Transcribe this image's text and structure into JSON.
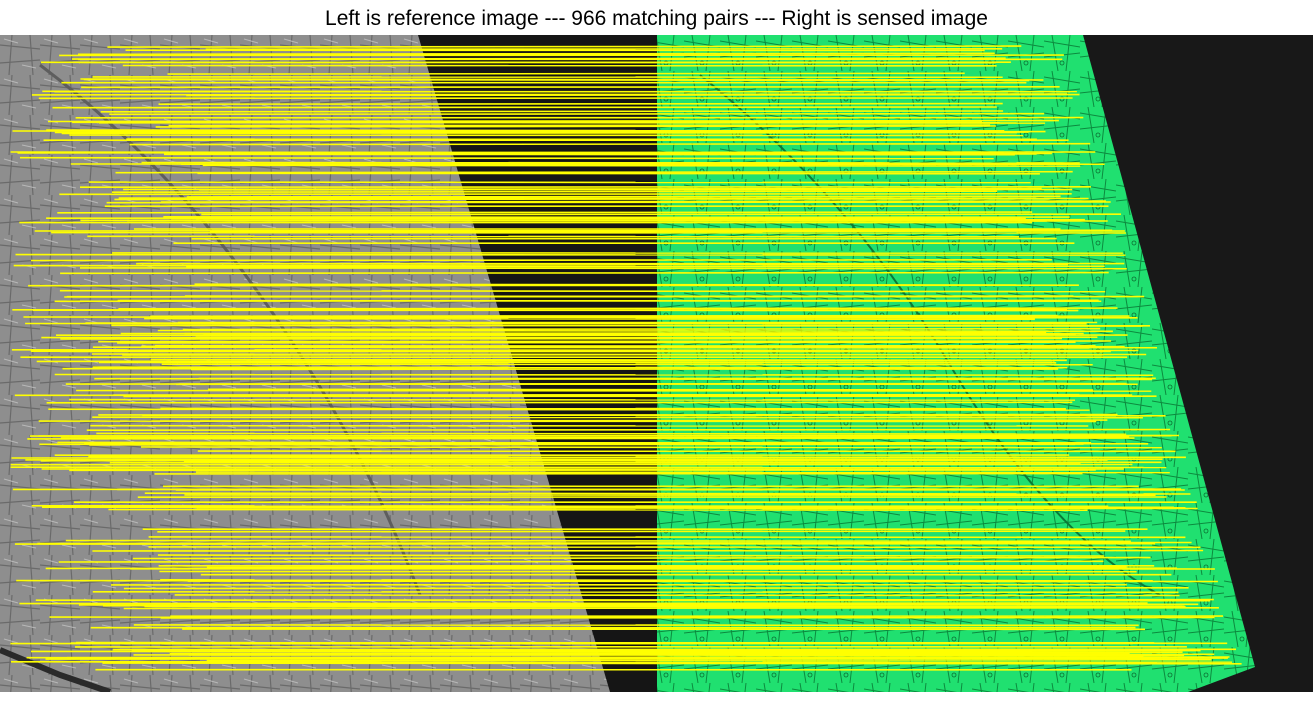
{
  "figure": {
    "title": "Left is reference image --- 966 matching pairs --- Right is sensed image"
  },
  "images": {
    "reference": {
      "description_role": "left grayscale aerial image"
    },
    "sensed": {
      "description_role": "right green-tinted rotated aerial image"
    }
  },
  "matches": {
    "count": 966,
    "line_color": "#ffff00"
  },
  "colors": {
    "reference_tone": "#8c8c8c",
    "sensed_tone": "#1fe070",
    "background_dark": "#181818",
    "page_background": "#ffffff"
  }
}
